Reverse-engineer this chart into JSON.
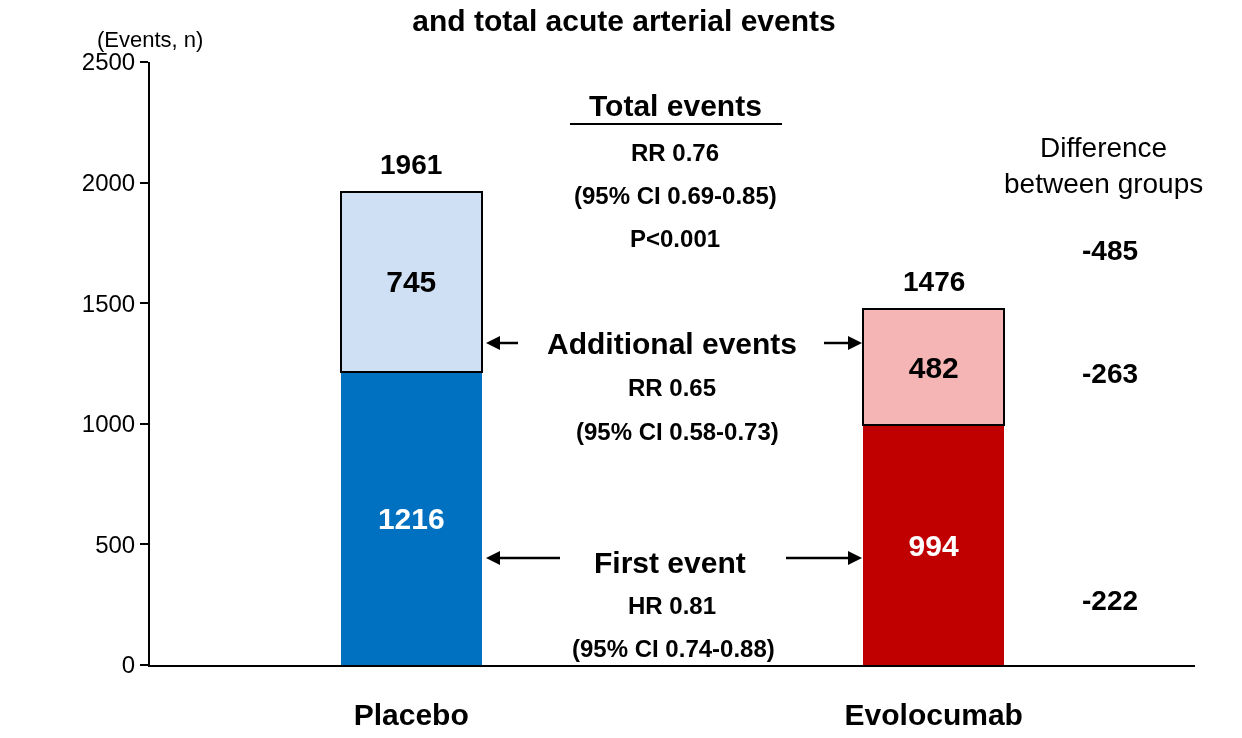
{
  "chart_data": {
    "type": "bar",
    "title": "and total acute arterial events",
    "ylabel": "(Events, n)",
    "categories": [
      "Placebo",
      "Evolocumab"
    ],
    "stacked": true,
    "series": [
      {
        "colors": [
          "#0070c0",
          "#c00000"
        ],
        "values": [
          1216,
          994
        ]
      },
      {
        "colors": [
          "#cfe0f5",
          "#f5b5b5"
        ],
        "values": [
          745,
          482
        ]
      }
    ],
    "data_labels": true,
    "totals": [
      "1961",
      "1476"
    ],
    "ylim": [
      0,
      2500
    ],
    "yticks": [
      0,
      500,
      1000,
      1500,
      2000,
      2500
    ],
    "grid": false,
    "annotations": [
      "Total events",
      "RR 0.76",
      "(95% CI 0.69-0.85)",
      "P<0.001",
      "Additional events",
      "RR 0.65",
      "(95% CI 0.58-0.73)",
      "First event",
      "HR 0.81",
      "(95% CI 0.74-0.88)",
      "Difference\nbetween groups",
      "-485",
      "-263",
      "-222"
    ]
  }
}
